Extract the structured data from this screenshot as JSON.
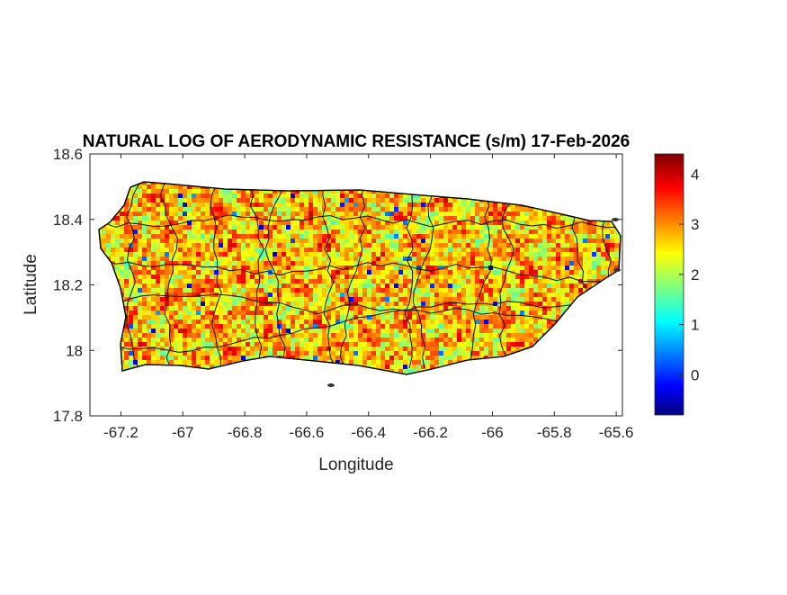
{
  "chart_data": {
    "type": "heatmap",
    "title": "NATURAL LOG OF AERODYNAMIC RESISTANCE (s/m) 17-Feb-2026",
    "xlabel": "Longitude",
    "ylabel": "Latitude",
    "xlim": [
      -67.3,
      -65.58
    ],
    "ylim": [
      17.8,
      18.6
    ],
    "xticks": [
      -67.2,
      -67,
      -66.8,
      -66.6,
      -66.4,
      -66.2,
      -66,
      -65.8,
      -65.6
    ],
    "xtick_labels": [
      "-67.2",
      "-67",
      "-66.8",
      "-66.6",
      "-66.4",
      "-66.2",
      "-66",
      "-65.8",
      "-65.6"
    ],
    "yticks": [
      17.8,
      18,
      18.2,
      18.4,
      18.6
    ],
    "ytick_labels": [
      "17.8",
      "18",
      "18.2",
      "18.4",
      "18.6"
    ],
    "colormap": "jet",
    "colorbar": {
      "limits": [
        -0.8,
        4.4
      ],
      "ticks": [
        0,
        1,
        2,
        3,
        4
      ],
      "tick_labels": [
        "0",
        "1",
        "2",
        "3",
        "4"
      ]
    },
    "region": "Puerto Rico with municipality boundaries",
    "typical_value_range": [
      2,
      3.5
    ],
    "grid": false
  }
}
